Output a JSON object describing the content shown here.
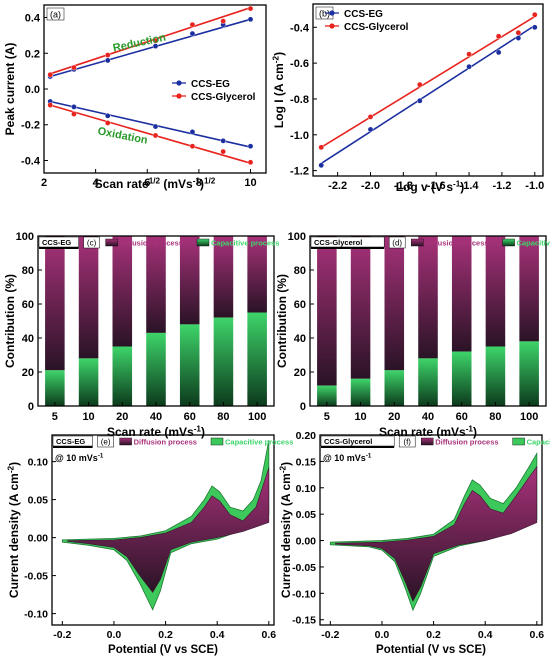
{
  "colors": {
    "blue": "#1c2fa0",
    "red": "#e8231d",
    "green_text": "#2a9a2a",
    "diffusion_top": "#a8327a",
    "diffusion_bottom": "#2a1326",
    "capacitive_top": "#3ed46a",
    "capacitive_bottom": "#0c3a1c",
    "cv_green": "#3cc85a",
    "cv_diffusion": "#7a2a5a"
  },
  "chart_data": [
    {
      "id": "a",
      "type": "scatter",
      "panel_label": "(a)",
      "xlabel_parts": [
        "Scan rate",
        "1/2",
        " (mVs",
        "-1",
        ")",
        "1/2"
      ],
      "ylabel": "Peak current (A)",
      "xlim": [
        2,
        10.6
      ],
      "ylim": [
        -0.47,
        0.47
      ],
      "xticks": [
        2,
        4,
        6,
        8,
        10
      ],
      "yticks": [
        -0.4,
        -0.2,
        0.0,
        0.2,
        0.4
      ],
      "ytick_labels": [
        "-0.4",
        "-0.2",
        "0.0",
        "0.2",
        "0.4"
      ],
      "annotations": [
        "Reduction",
        "Oxidation"
      ],
      "legend_position": "center-right",
      "series": [
        {
          "name": "CCS-EG",
          "color": "blue",
          "x": [
            2.24,
            3.16,
            4.47,
            6.32,
            7.75,
            8.94,
            10.0
          ],
          "y": [
            0.07,
            0.11,
            0.16,
            0.24,
            0.31,
            0.36,
            0.39
          ],
          "fit": [
            [
              2.24,
              0.07
            ],
            [
              10.0,
              0.39
            ]
          ]
        },
        {
          "name": "CCS-Glycerol",
          "color": "red",
          "x": [
            2.24,
            3.16,
            4.47,
            6.32,
            7.75,
            8.94,
            10.0
          ],
          "y": [
            0.08,
            0.12,
            0.19,
            0.27,
            0.36,
            0.38,
            0.45
          ],
          "fit": [
            [
              2.24,
              0.085
            ],
            [
              10.0,
              0.455
            ]
          ]
        },
        {
          "name": "",
          "color": "blue",
          "x": [
            2.24,
            3.16,
            4.47,
            6.32,
            7.75,
            8.94,
            10.0
          ],
          "y": [
            -0.07,
            -0.1,
            -0.15,
            -0.21,
            -0.24,
            -0.29,
            -0.32
          ],
          "fit": [
            [
              2.24,
              -0.07
            ],
            [
              10.0,
              -0.325
            ]
          ]
        },
        {
          "name": "",
          "color": "red",
          "x": [
            2.24,
            3.16,
            4.47,
            6.32,
            7.75,
            8.94,
            10.0
          ],
          "y": [
            -0.09,
            -0.14,
            -0.19,
            -0.26,
            -0.32,
            -0.35,
            -0.41
          ],
          "fit": [
            [
              2.24,
              -0.09
            ],
            [
              10.0,
              -0.415
            ]
          ]
        }
      ]
    },
    {
      "id": "b",
      "type": "scatter",
      "panel_label": "(b)",
      "xlabel_parts": [
        "Log v (V s",
        "-1",
        ")"
      ],
      "ylabel_parts": [
        "Log I (A cm",
        "-2",
        ")"
      ],
      "xlim": [
        -2.35,
        -0.95
      ],
      "ylim": [
        -1.23,
        -0.27
      ],
      "xticks": [
        -2.2,
        -2.0,
        -1.8,
        -1.6,
        -1.4,
        -1.2,
        -1.0
      ],
      "xtick_labels": [
        "-2.2",
        "-2.0",
        "-1.8",
        "-1.6",
        "-1.4",
        "-1.2",
        "-1.0"
      ],
      "yticks": [
        -1.2,
        -1.0,
        -0.8,
        -0.6,
        -0.4
      ],
      "ytick_labels": [
        "-1.2",
        "-1.0",
        "-0.8",
        "-0.6",
        "-0.4"
      ],
      "legend_position": "top-left",
      "series": [
        {
          "name": "CCS-EG",
          "color": "blue",
          "x": [
            -2.3,
            -2.0,
            -1.7,
            -1.4,
            -1.22,
            -1.1,
            -1.0
          ],
          "y": [
            -1.17,
            -0.97,
            -0.81,
            -0.62,
            -0.54,
            -0.46,
            -0.4
          ],
          "fit": [
            [
              -2.3,
              -1.16
            ],
            [
              -1.0,
              -0.39
            ]
          ]
        },
        {
          "name": "CCS-Glycerol",
          "color": "red",
          "x": [
            -2.3,
            -2.0,
            -1.7,
            -1.4,
            -1.22,
            -1.1,
            -1.0
          ],
          "y": [
            -1.07,
            -0.9,
            -0.72,
            -0.55,
            -0.45,
            -0.43,
            -0.33
          ],
          "fit": [
            [
              -2.3,
              -1.07
            ],
            [
              -1.0,
              -0.34
            ]
          ]
        }
      ]
    },
    {
      "id": "c",
      "type": "bar",
      "panel_label": "(c)",
      "tag": "CCS-EG",
      "legend": [
        "Diffusion process",
        "Capacitive process"
      ],
      "categories": [
        "5",
        "10",
        "20",
        "40",
        "60",
        "80",
        "100"
      ],
      "capacitive": [
        21,
        28,
        35,
        43,
        48,
        52,
        55
      ],
      "xlabel_parts": [
        "Scan rate (mVs",
        "-1",
        ")"
      ],
      "ylabel": "Contribution (%)",
      "ylim": [
        0,
        100
      ],
      "yticks": [
        0,
        20,
        40,
        60,
        80,
        100
      ]
    },
    {
      "id": "d",
      "type": "bar",
      "panel_label": "(d)",
      "tag": "CCS-Glycerol",
      "legend": [
        "Diffusion process",
        "Capacitive process"
      ],
      "categories": [
        "5",
        "10",
        "20",
        "40",
        "60",
        "80",
        "100"
      ],
      "capacitive": [
        12,
        16,
        21,
        28,
        32,
        35,
        38
      ],
      "xlabel_parts": [
        "Scan rate (mVs",
        "-1",
        ")"
      ],
      "ylabel": "Contribution (%)",
      "ylim": [
        0,
        100
      ],
      "yticks": [
        0,
        20,
        40,
        60,
        80,
        100
      ]
    },
    {
      "id": "e",
      "type": "area",
      "panel_label": "(e)",
      "tag": "CCS-EG",
      "scan_note_parts": [
        "@ 10 mVs",
        "-1"
      ],
      "legend": [
        "Diffusion process",
        "Capacitive process"
      ],
      "xlabel": "Potential (V vs SCE)",
      "ylabel_parts": [
        "Current density (A cm",
        "-2",
        ")"
      ],
      "xlim": [
        -0.24,
        0.62
      ],
      "ylim": [
        -0.115,
        0.135
      ],
      "xticks": [
        -0.2,
        0.0,
        0.2,
        0.4,
        0.6
      ],
      "xtick_labels": [
        "-0.2",
        "0.0",
        "0.2",
        "0.4",
        "0.6"
      ],
      "yticks": [
        -0.1,
        -0.05,
        0.0,
        0.05,
        0.1
      ],
      "ytick_labels": [
        "-0.10",
        "-0.05",
        "0.00",
        "0.05",
        "0.10"
      ],
      "total_upper": [
        [
          -0.2,
          -0.003
        ],
        [
          0.0,
          -0.001
        ],
        [
          0.1,
          0.002
        ],
        [
          0.2,
          0.009
        ],
        [
          0.3,
          0.028
        ],
        [
          0.35,
          0.05
        ],
        [
          0.38,
          0.068
        ],
        [
          0.41,
          0.06
        ],
        [
          0.45,
          0.04
        ],
        [
          0.5,
          0.035
        ],
        [
          0.54,
          0.05
        ],
        [
          0.57,
          0.075
        ],
        [
          0.6,
          0.128
        ]
      ],
      "total_lower": [
        [
          -0.2,
          -0.006
        ],
        [
          -0.1,
          -0.01
        ],
        [
          0.0,
          -0.016
        ],
        [
          0.05,
          -0.03
        ],
        [
          0.1,
          -0.06
        ],
        [
          0.15,
          -0.095
        ],
        [
          0.18,
          -0.07
        ],
        [
          0.22,
          -0.02
        ],
        [
          0.3,
          -0.008
        ],
        [
          0.4,
          -0.002
        ],
        [
          0.5,
          0.01
        ],
        [
          0.6,
          0.03
        ]
      ],
      "diffusion_upper": [
        [
          -0.18,
          -0.004
        ],
        [
          0.0,
          -0.003
        ],
        [
          0.1,
          0.0
        ],
        [
          0.2,
          0.006
        ],
        [
          0.3,
          0.02
        ],
        [
          0.35,
          0.04
        ],
        [
          0.38,
          0.055
        ],
        [
          0.41,
          0.048
        ],
        [
          0.45,
          0.03
        ],
        [
          0.5,
          0.022
        ],
        [
          0.55,
          0.04
        ],
        [
          0.6,
          0.092
        ]
      ],
      "diffusion_lower": [
        [
          -0.18,
          -0.005
        ],
        [
          -0.1,
          -0.008
        ],
        [
          0.0,
          -0.013
        ],
        [
          0.05,
          -0.025
        ],
        [
          0.1,
          -0.05
        ],
        [
          0.15,
          -0.072
        ],
        [
          0.18,
          -0.055
        ],
        [
          0.22,
          -0.016
        ],
        [
          0.3,
          -0.006
        ],
        [
          0.4,
          0.0
        ],
        [
          0.5,
          0.008
        ],
        [
          0.6,
          0.02
        ]
      ]
    },
    {
      "id": "f",
      "type": "area",
      "panel_label": "(f)",
      "tag": "CCS-Glycerol",
      "scan_note_parts": [
        "@ 10 mVs",
        "-1"
      ],
      "legend": [
        "Diffusion process",
        "Capacitive process"
      ],
      "xlabel": "Potential (V vs SCE)",
      "ylabel_parts": [
        "Current density (A cm",
        "-2",
        ")"
      ],
      "xlim": [
        -0.24,
        0.62
      ],
      "ylim": [
        -0.16,
        0.2
      ],
      "xticks": [
        -0.2,
        0.0,
        0.2,
        0.4,
        0.6
      ],
      "xtick_labels": [
        "-0.2",
        "0.0",
        "0.2",
        "0.4",
        "0.6"
      ],
      "yticks": [
        -0.15,
        -0.1,
        -0.05,
        0.0,
        0.05,
        0.1,
        0.15,
        0.2
      ],
      "ytick_labels": [
        "-0.15",
        "-0.10",
        "-0.05",
        "0.00",
        "0.05",
        "0.10",
        "0.15",
        "0.20"
      ],
      "total_upper": [
        [
          -0.2,
          -0.003
        ],
        [
          0.0,
          0.0
        ],
        [
          0.1,
          0.004
        ],
        [
          0.2,
          0.012
        ],
        [
          0.28,
          0.04
        ],
        [
          0.32,
          0.085
        ],
        [
          0.35,
          0.115
        ],
        [
          0.38,
          0.105
        ],
        [
          0.42,
          0.08
        ],
        [
          0.47,
          0.07
        ],
        [
          0.52,
          0.1
        ],
        [
          0.57,
          0.14
        ],
        [
          0.6,
          0.165
        ]
      ],
      "total_lower": [
        [
          -0.2,
          -0.008
        ],
        [
          -0.05,
          -0.012
        ],
        [
          0.0,
          -0.018
        ],
        [
          0.05,
          -0.04
        ],
        [
          0.09,
          -0.09
        ],
        [
          0.12,
          -0.132
        ],
        [
          0.15,
          -0.1
        ],
        [
          0.2,
          -0.03
        ],
        [
          0.3,
          -0.01
        ],
        [
          0.4,
          0.0
        ],
        [
          0.5,
          0.015
        ],
        [
          0.6,
          0.04
        ]
      ],
      "diffusion_upper": [
        [
          -0.18,
          -0.005
        ],
        [
          0.0,
          -0.003
        ],
        [
          0.1,
          0.001
        ],
        [
          0.2,
          0.008
        ],
        [
          0.28,
          0.03
        ],
        [
          0.32,
          0.07
        ],
        [
          0.35,
          0.095
        ],
        [
          0.38,
          0.085
        ],
        [
          0.42,
          0.06
        ],
        [
          0.47,
          0.052
        ],
        [
          0.52,
          0.085
        ],
        [
          0.57,
          0.12
        ],
        [
          0.6,
          0.14
        ]
      ],
      "diffusion_lower": [
        [
          -0.18,
          -0.007
        ],
        [
          -0.05,
          -0.01
        ],
        [
          0.0,
          -0.015
        ],
        [
          0.05,
          -0.034
        ],
        [
          0.09,
          -0.078
        ],
        [
          0.12,
          -0.115
        ],
        [
          0.15,
          -0.088
        ],
        [
          0.2,
          -0.025
        ],
        [
          0.3,
          -0.008
        ],
        [
          0.4,
          0.0
        ],
        [
          0.5,
          0.013
        ],
        [
          0.6,
          0.034
        ]
      ]
    }
  ]
}
